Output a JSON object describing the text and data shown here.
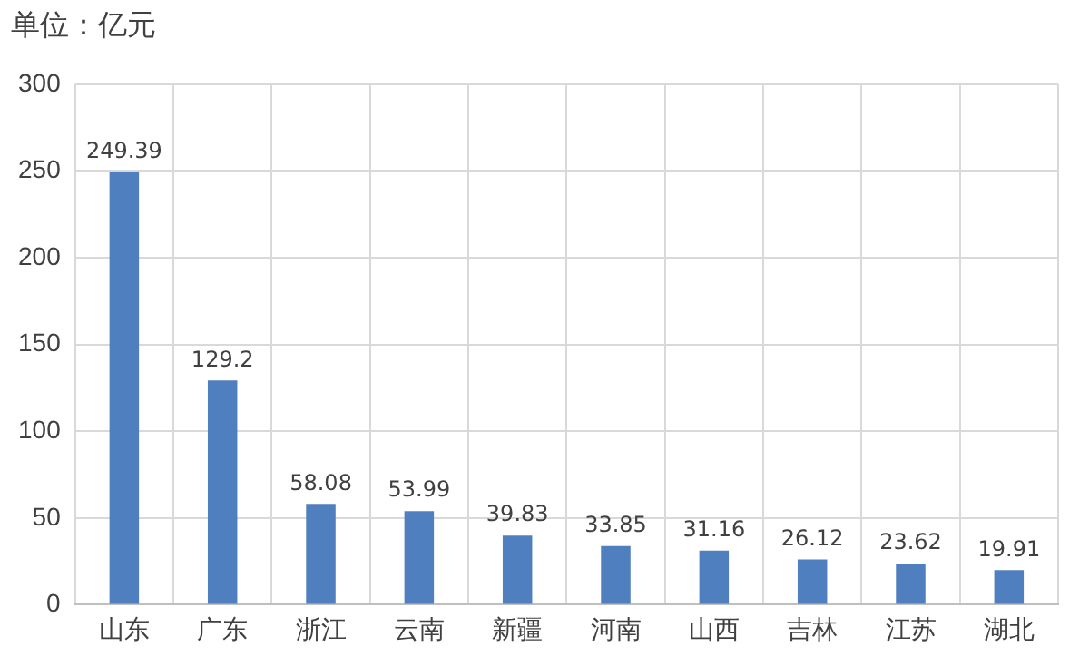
{
  "chart_data": {
    "type": "bar",
    "ylabel": "单位：亿元",
    "categories": [
      "山东",
      "广东",
      "浙江",
      "云南",
      "新疆",
      "河南",
      "山西",
      "吉林",
      "江苏",
      "湖北"
    ],
    "values": [
      249.39,
      129.2,
      58.08,
      53.99,
      39.83,
      33.85,
      31.16,
      26.12,
      23.62,
      19.91
    ],
    "color": "#4f7fbf",
    "ylim": [
      0,
      300
    ],
    "yticks": [
      0,
      50,
      100,
      150,
      200,
      250,
      300
    ],
    "grid": true,
    "data_labels": true,
    "legend": false
  }
}
